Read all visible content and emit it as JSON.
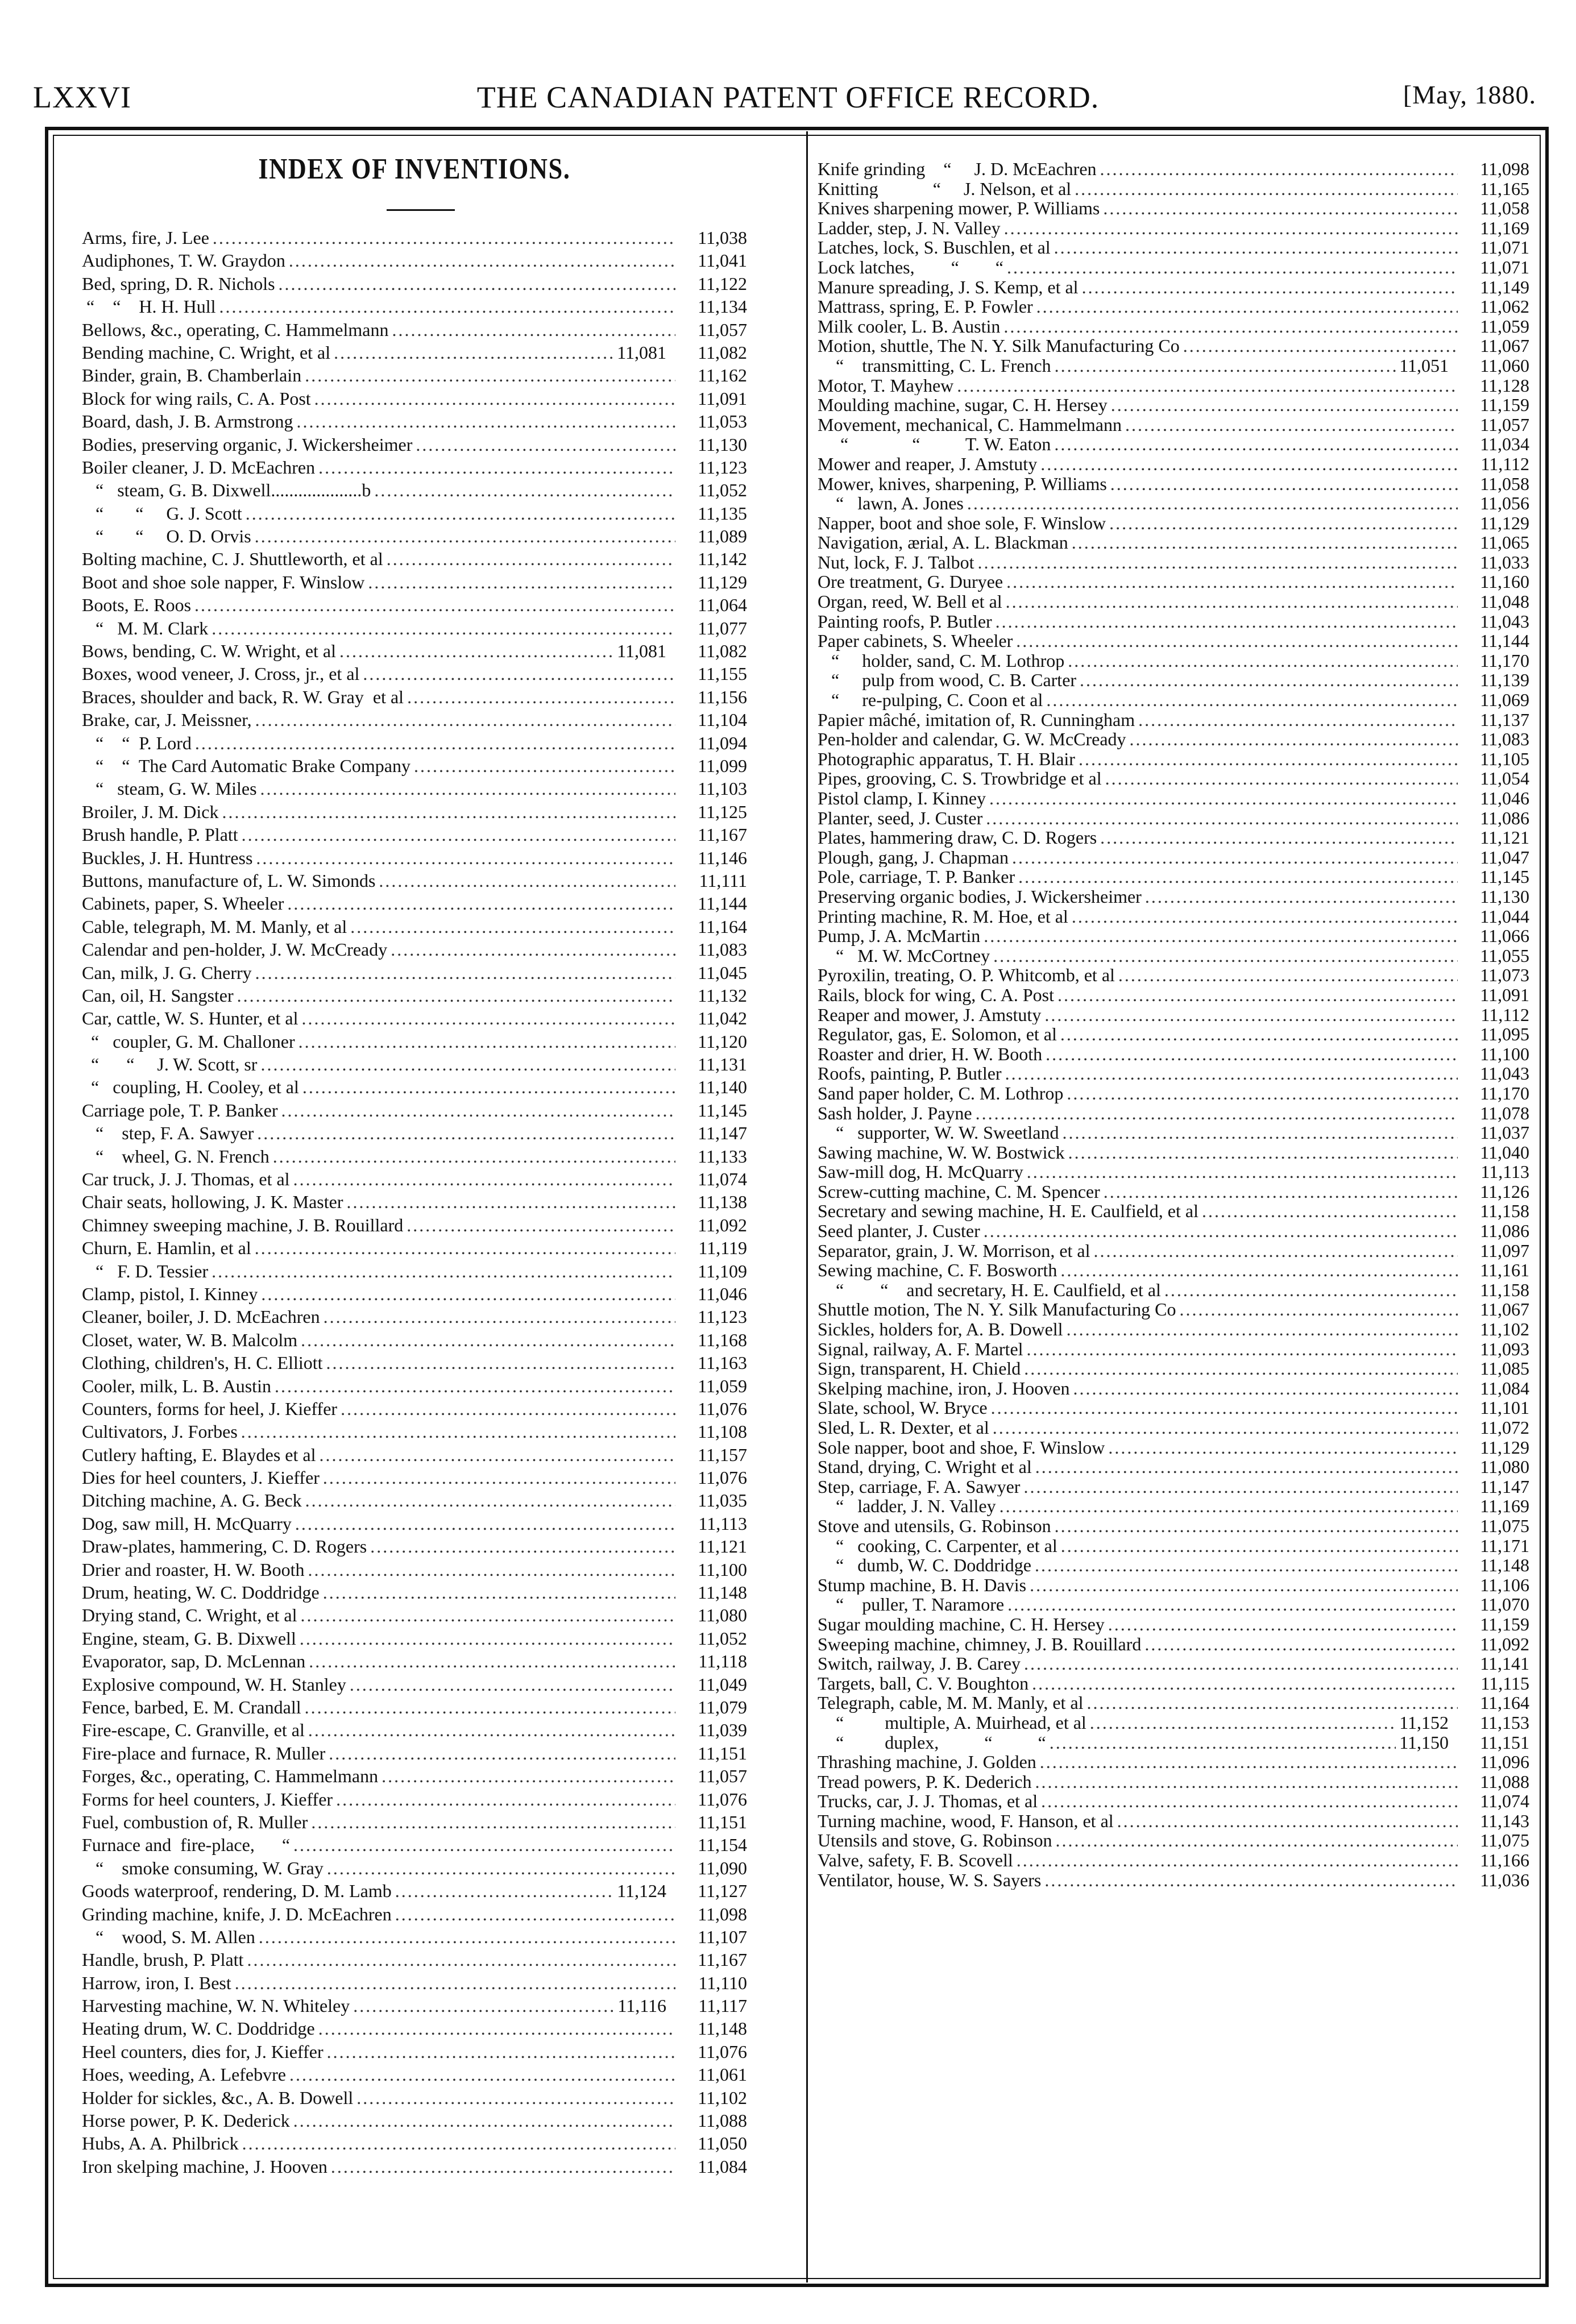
{
  "header": {
    "page_number": "LXXVI",
    "title": "THE CANADIAN PATENT OFFICE RECORD.",
    "date": "[May, 1880."
  },
  "index_title": "INDEX OF INVENTIONS.",
  "left_entries": [
    [
      "Arms, fire, J. Lee",
      "",
      "11,038"
    ],
    [
      "Audiphones, T. W. Graydon",
      "",
      "11,041"
    ],
    [
      "Bed, spring, D. R. Nichols",
      "",
      "11,122"
    ],
    [
      " “    “    H. H. Hull",
      "",
      "11,134"
    ],
    [
      "Bellows, &c., operating, C. Hammelmann",
      "",
      "11,057"
    ],
    [
      "Bending machine, C. Wright, et al",
      "11,081",
      "11,082"
    ],
    [
      "Binder, grain, B. Chamberlain",
      "",
      "11,162"
    ],
    [
      "Block for wing rails, C. A. Post",
      "",
      "11,091"
    ],
    [
      "Board, dash, J. B. Armstrong",
      "",
      "11,053"
    ],
    [
      "Bodies, preserving organic, J. Wickersheimer",
      "",
      "11,130"
    ],
    [
      "Boiler cleaner, J. D. McEachren",
      "",
      "11,123"
    ],
    [
      "   “   steam, G. B. Dixwell....................b",
      "",
      "11,052"
    ],
    [
      "   “       “     G. J. Scott",
      "",
      "11,135"
    ],
    [
      "   “       “     O. D. Orvis",
      "",
      "11,089"
    ],
    [
      "Bolting machine, C. J. Shuttleworth, et al",
      "",
      "11,142"
    ],
    [
      "Boot and shoe sole napper, F. Winslow",
      "",
      "11,129"
    ],
    [
      "Boots, E. Roos",
      "",
      "11,064"
    ],
    [
      "   “   M. M. Clark",
      "",
      "11,077"
    ],
    [
      "Bows, bending, C. W. Wright, et al",
      "11,081",
      "11,082"
    ],
    [
      "Boxes, wood veneer, J. Cross, jr., et al",
      "",
      "11,155"
    ],
    [
      "Braces, shoulder and back, R. W. Gray  et al",
      "",
      "11,156"
    ],
    [
      "Brake, car, J. Meissner,",
      "",
      "11,104"
    ],
    [
      "   “    “  P. Lord",
      "",
      "11,094"
    ],
    [
      "   “    “  The Card Automatic Brake Company",
      "",
      "11,099"
    ],
    [
      "   “   steam, G. W. Miles",
      "",
      "11,103"
    ],
    [
      "Broiler, J. M. Dick",
      "",
      "11,125"
    ],
    [
      "Brush handle, P. Platt",
      "",
      "11,167"
    ],
    [
      "Buckles, J. H. Huntress",
      "",
      "11,146"
    ],
    [
      "Buttons, manufacture of, L. W. Simonds",
      "",
      "11,111"
    ],
    [
      "Cabinets, paper, S. Wheeler",
      "",
      "11,144"
    ],
    [
      "Cable, telegraph, M. M. Manly, et al",
      "",
      "11,164"
    ],
    [
      "Calendar and pen-holder, J. W. McCready",
      "",
      "11,083"
    ],
    [
      "Can, milk, J. G. Cherry",
      "",
      "11,045"
    ],
    [
      "Can, oil, H. Sangster",
      "",
      "11,132"
    ],
    [
      "Car, cattle, W. S. Hunter, et al",
      "",
      "11,042"
    ],
    [
      "  “   coupler, G. M. Challoner",
      "",
      "11,120"
    ],
    [
      "  “      “     J. W. Scott, sr",
      "",
      "11,131"
    ],
    [
      "  “   coupling, H. Cooley, et al",
      "",
      "11,140"
    ],
    [
      "Carriage pole, T. P. Banker",
      "",
      "11,145"
    ],
    [
      "   “    step, F. A. Sawyer",
      "",
      "11,147"
    ],
    [
      "   “    wheel, G. N. French",
      "",
      "11,133"
    ],
    [
      "Car truck, J. J. Thomas, et al",
      "",
      "11,074"
    ],
    [
      "Chair seats, hollowing, J. K. Master",
      "",
      "11,138"
    ],
    [
      "Chimney sweeping machine, J. B. Rouillard",
      "",
      "11,092"
    ],
    [
      "Churn, E. Hamlin, et al",
      "",
      "11,119"
    ],
    [
      "   “   F. D. Tessier",
      "",
      "11,109"
    ],
    [
      "Clamp, pistol, I. Kinney",
      "",
      "11,046"
    ],
    [
      "Cleaner, boiler, J. D. McEachren",
      "",
      "11,123"
    ],
    [
      "Closet, water, W. B. Malcolm",
      "",
      "11,168"
    ],
    [
      "Clothing, children's, H. C. Elliott",
      "",
      "11,163"
    ],
    [
      "Cooler, milk, L. B. Austin",
      "",
      "11,059"
    ],
    [
      "Counters, forms for heel, J. Kieffer",
      "",
      "11,076"
    ],
    [
      "Cultivators, J. Forbes",
      "",
      "11,108"
    ],
    [
      "Cutlery hafting, E. Blaydes et al",
      "",
      "11,157"
    ],
    [
      "Dies for heel counters, J. Kieffer",
      "",
      "11,076"
    ],
    [
      "Ditching machine, A. G. Beck",
      "",
      "11,035"
    ],
    [
      "Dog, saw mill, H. McQuarry",
      "",
      "11,113"
    ],
    [
      "Draw-plates, hammering, C. D. Rogers",
      "",
      "11,121"
    ],
    [
      "Drier and roaster, H. W. Booth",
      "",
      "11,100"
    ],
    [
      "Drum, heating, W. C. Doddridge",
      "",
      "11,148"
    ],
    [
      "Drying stand, C. Wright, et al",
      "",
      "11,080"
    ],
    [
      "Engine, steam, G. B. Dixwell",
      "",
      "11,052"
    ],
    [
      "Evaporator, sap, D. McLennan",
      "",
      "11,118"
    ],
    [
      "Explosive compound, W. H. Stanley",
      "",
      "11,049"
    ],
    [
      "Fence, barbed, E. M. Crandall",
      "",
      "11,079"
    ],
    [
      "Fire-escape, C. Granville, et al",
      "",
      "11,039"
    ],
    [
      "Fire-place and furnace, R. Muller",
      "",
      "11,151"
    ],
    [
      "Forges, &c., operating, C. Hammelmann",
      "",
      "11,057"
    ],
    [
      "Forms for heel counters, J. Kieffer",
      "",
      "11,076"
    ],
    [
      "Fuel, combustion of, R. Muller",
      "",
      "11,151"
    ],
    [
      "Furnace and  fire-place,      “",
      "",
      "11,154"
    ],
    [
      "   “    smoke consuming, W. Gray",
      "",
      "11,090"
    ],
    [
      "Goods waterproof, rendering, D. M. Lamb",
      "11,124",
      "11,127"
    ],
    [
      "Grinding machine, knife, J. D. McEachren",
      "",
      "11,098"
    ],
    [
      "   “    wood, S. M. Allen",
      "",
      "11,107"
    ],
    [
      "Handle, brush, P. Platt",
      "",
      "11,167"
    ],
    [
      "Harrow, iron, I. Best",
      "",
      "11,110"
    ],
    [
      "Harvesting machine, W. N. Whiteley",
      "11,116",
      "11,117"
    ],
    [
      "Heating drum, W. C. Doddridge",
      "",
      "11,148"
    ],
    [
      "Heel counters, dies for, J. Kieffer",
      "",
      "11,076"
    ],
    [
      "Hoes, weeding, A. Lefebvre",
      "",
      "11,061"
    ],
    [
      "Holder for sickles, &c., A. B. Dowell",
      "",
      "11,102"
    ],
    [
      "Horse power, P. K. Dederick",
      "",
      "11,088"
    ],
    [
      "Hubs, A. A. Philbrick",
      "",
      "11,050"
    ],
    [
      "Iron skelping machine, J. Hooven",
      "",
      "11,084"
    ]
  ],
  "right_entries": [
    [
      "Knife grinding    “     J. D. McEachren",
      "",
      "11,098"
    ],
    [
      "Knitting            “     J. Nelson, et al",
      "",
      "11,165"
    ],
    [
      "Knives sharpening mower, P. Williams",
      "",
      "11,058"
    ],
    [
      "Ladder, step, J. N. Valley",
      "",
      "11,169"
    ],
    [
      "Latches, lock, S. Buschlen, et al",
      "",
      "11,071"
    ],
    [
      "Lock latches,        “        “",
      "",
      "11,071"
    ],
    [
      "Manure spreading, J. S. Kemp, et al",
      "",
      "11,149"
    ],
    [
      "Mattrass, spring, E. P. Fowler",
      "",
      "11,062"
    ],
    [
      "Milk cooler, L. B. Austin",
      "",
      "11,059"
    ],
    [
      "Motion, shuttle, The N. Y. Silk Manufacturing Co",
      "",
      "11,067"
    ],
    [
      "    “    transmitting, C. L. French",
      "11,051",
      "11,060"
    ],
    [
      "Motor, T. Mayhew",
      "",
      "11,128"
    ],
    [
      "Moulding machine, sugar, C. H. Hersey",
      "",
      "11,159"
    ],
    [
      "Movement, mechanical, C. Hammelmann",
      "",
      "11,057"
    ],
    [
      "     “              “          T. W. Eaton",
      "",
      "11,034"
    ],
    [
      "Mower and reaper, J. Amstuty",
      "",
      "11,112"
    ],
    [
      "Mower, knives, sharpening, P. Williams",
      "",
      "11,058"
    ],
    [
      "    “   lawn, A. Jones",
      "",
      "11,056"
    ],
    [
      "Napper, boot and shoe sole, F. Winslow",
      "",
      "11,129"
    ],
    [
      "Navigation, ærial, A. L. Blackman",
      "",
      "11,065"
    ],
    [
      "Nut, lock, F. J. Talbot",
      "",
      "11,033"
    ],
    [
      "Ore treatment, G. Duryee",
      "",
      "11,160"
    ],
    [
      "Organ, reed, W. Bell et al",
      "",
      "11,048"
    ],
    [
      "Painting roofs, P. Butler",
      "",
      "11,043"
    ],
    [
      "Paper cabinets, S. Wheeler",
      "",
      "11,144"
    ],
    [
      "   “     holder, sand, C. M. Lothrop",
      "",
      "11,170"
    ],
    [
      "   “     pulp from wood, C. B. Carter",
      "",
      "11,139"
    ],
    [
      "   “     re-pulping, C. Coon et al",
      "",
      "11,069"
    ],
    [
      "Papier mâché, imitation of, R. Cunningham",
      "",
      "11,137"
    ],
    [
      "Pen-holder and calendar, G. W. McCready",
      "",
      "11,083"
    ],
    [
      "Photographic apparatus, T. H. Blair",
      "",
      "11,105"
    ],
    [
      "Pipes, grooving, C. S. Trowbridge et al",
      "",
      "11,054"
    ],
    [
      "Pistol clamp, I. Kinney",
      "",
      "11,046"
    ],
    [
      "Planter, seed, J. Custer",
      "",
      "11,086"
    ],
    [
      "Plates, hammering draw, C. D. Rogers",
      "",
      "11,121"
    ],
    [
      "Plough, gang, J. Chapman",
      "",
      "11,047"
    ],
    [
      "Pole, carriage, T. P. Banker",
      "",
      "11,145"
    ],
    [
      "Preserving organic bodies, J. Wickersheimer",
      "",
      "11,130"
    ],
    [
      "Printing machine, R. M. Hoe, et al",
      "",
      "11,044"
    ],
    [
      "Pump, J. A. McMartin",
      "",
      "11,066"
    ],
    [
      "    “   M. W. McCortney",
      "",
      "11,055"
    ],
    [
      "Pyroxilin, treating, O. P. Whitcomb, et al",
      "",
      "11,073"
    ],
    [
      "Rails, block for wing, C. A. Post",
      "",
      "11,091"
    ],
    [
      "Reaper and mower, J. Amstuty",
      "",
      "11,112"
    ],
    [
      "Regulator, gas, E. Solomon, et al",
      "",
      "11,095"
    ],
    [
      "Roaster and drier, H. W. Booth",
      "",
      "11,100"
    ],
    [
      "Roofs, painting, P. Butler",
      "",
      "11,043"
    ],
    [
      "Sand paper holder, C. M. Lothrop",
      "",
      "11,170"
    ],
    [
      "Sash holder, J. Payne",
      "",
      "11,078"
    ],
    [
      "    “   supporter, W. W. Sweetland",
      "",
      "11,037"
    ],
    [
      "Sawing machine, W. W. Bostwick",
      "",
      "11,040"
    ],
    [
      "Saw-mill dog, H. McQuarry",
      "",
      "11,113"
    ],
    [
      "Screw-cutting machine, C. M. Spencer",
      "",
      "11,126"
    ],
    [
      "Secretary and sewing machine, H. E. Caulfield, et al",
      "",
      "11,158"
    ],
    [
      "Seed planter, J. Custer",
      "",
      "11,086"
    ],
    [
      "Separator, grain, J. W. Morrison, et al",
      "",
      "11,097"
    ],
    [
      "Sewing machine, C. F. Bosworth",
      "",
      "11,161"
    ],
    [
      "    “        “    and secretary, H. E. Caulfield, et al",
      "",
      "11,158"
    ],
    [
      "Shuttle motion, The N. Y. Silk Manufacturing Co",
      "",
      "11,067"
    ],
    [
      "Sickles, holders for, A. B. Dowell",
      "",
      "11,102"
    ],
    [
      "Signal, railway, A. F. Martel",
      "",
      "11,093"
    ],
    [
      "Sign, transparent, H. Chield",
      "",
      "11,085"
    ],
    [
      "Skelping machine, iron, J. Hooven",
      "",
      "11,084"
    ],
    [
      "Slate, school, W. Bryce",
      "",
      "11,101"
    ],
    [
      "Sled, L. R. Dexter, et al",
      "",
      "11,072"
    ],
    [
      "Sole napper, boot and shoe, F. Winslow",
      "",
      "11,129"
    ],
    [
      "Stand, drying, C. Wright et al",
      "",
      "11,080"
    ],
    [
      "Step, carriage, F. A. Sawyer",
      "",
      "11,147"
    ],
    [
      "    “   ladder, J. N. Valley",
      "",
      "11,169"
    ],
    [
      "Stove and utensils, G. Robinson",
      "",
      "11,075"
    ],
    [
      "    “   cooking, C. Carpenter, et al",
      "",
      "11,171"
    ],
    [
      "    “   dumb, W. C. Doddridge",
      "",
      "11,148"
    ],
    [
      "Stump machine, B. H. Davis",
      "",
      "11,106"
    ],
    [
      "    “    puller, T. Naramore",
      "",
      "11,070"
    ],
    [
      "Sugar moulding machine, C. H. Hersey",
      "",
      "11,159"
    ],
    [
      "Sweeping machine, chimney, J. B. Rouillard",
      "",
      "11,092"
    ],
    [
      "Switch, railway, J. B. Carey",
      "",
      "11,141"
    ],
    [
      "Targets, ball, C. V. Boughton",
      "",
      "11,115"
    ],
    [
      "Telegraph, cable, M. M. Manly, et al",
      "",
      "11,164"
    ],
    [
      "    “         multiple, A. Muirhead, et al",
      "11,152",
      "11,153"
    ],
    [
      "    “         duplex,          “          “",
      "11,150",
      "11,151"
    ],
    [
      "Thrashing machine, J. Golden",
      "",
      "11,096"
    ],
    [
      "Tread powers, P. K. Dederich",
      "",
      "11,088"
    ],
    [
      "Trucks, car, J. J. Thomas, et al",
      "",
      "11,074"
    ],
    [
      "Turning machine, wood, F. Hanson, et al",
      "",
      "11,143"
    ],
    [
      "Utensils and stove, G. Robinson",
      "",
      "11,075"
    ],
    [
      "Valve, safety, F. B. Scovell",
      "",
      "11,166"
    ],
    [
      "Ventilator, house, W. S. Sayers",
      "",
      "11,036"
    ]
  ]
}
